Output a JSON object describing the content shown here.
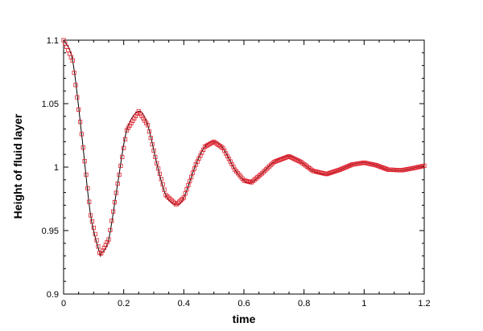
{
  "chart_data": {
    "type": "line",
    "xlabel": "time",
    "ylabel": "Height of fluid layer",
    "xlim": [
      0,
      1.2
    ],
    "ylim": [
      0.9,
      1.1
    ],
    "x_ticks": [
      0,
      0.2,
      0.4,
      0.6,
      0.8,
      1,
      1.2
    ],
    "y_ticks": [
      0.9,
      0.95,
      1,
      1.05,
      1.1
    ],
    "x_tick_labels": [
      "0",
      "0.2",
      "0.4",
      "0.6",
      "0.8",
      "1",
      "1.2"
    ],
    "y_tick_labels": [
      "0.9",
      "0.95",
      "1",
      "1.05",
      "1.1"
    ],
    "grid": false,
    "legend": "none",
    "series": [
      {
        "style": "line",
        "color": "#000000",
        "x": [
          0,
          0.03,
          0.06,
          0.09,
          0.12,
          0.125,
          0.15,
          0.18,
          0.21,
          0.25,
          0.28,
          0.31,
          0.34,
          0.375,
          0.4,
          0.44,
          0.47,
          0.5,
          0.53,
          0.57,
          0.6,
          0.625,
          0.66,
          0.7,
          0.75,
          0.79,
          0.83,
          0.875,
          0.92,
          0.96,
          1.0,
          1.04,
          1.08,
          1.125,
          1.16,
          1.2
        ],
        "y": [
          1.1,
          1.084,
          1.026,
          0.962,
          0.9325,
          0.932,
          0.943,
          0.987,
          1.029,
          1.044,
          1.033,
          1.003,
          0.978,
          0.9705,
          0.976,
          1.002,
          1.016,
          1.02,
          1.015,
          0.998,
          0.9895,
          0.988,
          0.995,
          1.004,
          1.0085,
          1.004,
          0.997,
          0.9945,
          0.998,
          1.002,
          1.0035,
          1.0015,
          0.998,
          0.9975,
          0.999,
          1.001
        ]
      },
      {
        "style": "markers",
        "marker": "square",
        "color": "#e0202c",
        "x": [
          0,
          0.03,
          0.06,
          0.09,
          0.12,
          0.125,
          0.15,
          0.18,
          0.21,
          0.25,
          0.28,
          0.31,
          0.34,
          0.375,
          0.4,
          0.44,
          0.47,
          0.5,
          0.53,
          0.57,
          0.6,
          0.625,
          0.66,
          0.7,
          0.75,
          0.79,
          0.83,
          0.875,
          0.92,
          0.96,
          1.0,
          1.04,
          1.08,
          1.125,
          1.16,
          1.2
        ],
        "y": [
          1.1,
          1.084,
          1.026,
          0.962,
          0.9325,
          0.932,
          0.943,
          0.987,
          1.029,
          1.044,
          1.033,
          1.003,
          0.978,
          0.9705,
          0.976,
          1.002,
          1.016,
          1.02,
          1.015,
          0.998,
          0.9895,
          0.988,
          0.995,
          1.004,
          1.0085,
          1.004,
          0.997,
          0.9945,
          0.998,
          1.002,
          1.0035,
          1.0015,
          0.998,
          0.9975,
          0.999,
          1.001
        ]
      }
    ]
  }
}
